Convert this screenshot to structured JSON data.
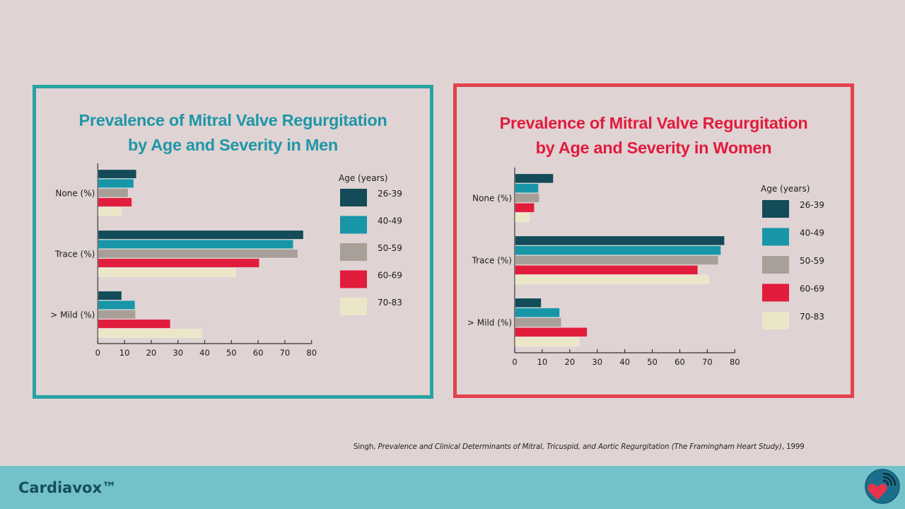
{
  "colors": {
    "background": "#e0d3d4",
    "men_frame": "#28a3a3",
    "men_title": "#1e97a6",
    "women_frame": "#e2424e",
    "women_title": "#e21b3c",
    "footer": "#73c1cb",
    "brand_text": "#164d5c"
  },
  "chart_data": [
    {
      "type": "bar",
      "orientation": "horizontal",
      "title": "Prevalence of Mitral Valve Regurgitation by Age and Severity in Men",
      "title_lines": [
        "Prevalence of Mitral Valve Regurgitation",
        "by Age and Severity in Men"
      ],
      "categories": [
        "None (%)",
        "Trace (%)",
        "> Mild (%)"
      ],
      "legend_title": "Age (years)",
      "legend_position": "right",
      "xlim": [
        0,
        80
      ],
      "xticks": [
        0,
        10,
        20,
        30,
        40,
        50,
        60,
        70,
        80
      ],
      "xlabel": "",
      "ylabel": "",
      "grid": false,
      "series": [
        {
          "name": "26-39",
          "color": "#134b58",
          "values": [
            14.4,
            76.9,
            8.9
          ]
        },
        {
          "name": "40-49",
          "color": "#1896a8",
          "values": [
            13.4,
            73.1,
            13.9
          ]
        },
        {
          "name": "50-59",
          "color": "#a89f98",
          "values": [
            11.3,
            74.8,
            14.1
          ]
        },
        {
          "name": "60-69",
          "color": "#e21c3c",
          "values": [
            12.7,
            60.4,
            27.1
          ]
        },
        {
          "name": "70-83",
          "color": "#ece6c8",
          "values": [
            8.8,
            51.7,
            39.0
          ]
        }
      ]
    },
    {
      "type": "bar",
      "orientation": "horizontal",
      "title": "Prevalence of Mitral Valve Regurgitation by Age and Severity in Women",
      "title_lines": [
        "Prevalence of Mitral Valve Regurgitation",
        "by Age and Severity in Women"
      ],
      "categories": [
        "None (%)",
        "Trace (%)",
        "> Mild (%)"
      ],
      "legend_title": "Age (years)",
      "legend_position": "right",
      "xlim": [
        0,
        80
      ],
      "xticks": [
        0,
        10,
        20,
        30,
        40,
        50,
        60,
        70,
        80
      ],
      "xlabel": "",
      "ylabel": "",
      "grid": false,
      "series": [
        {
          "name": "26-39",
          "color": "#134b58",
          "values": [
            14.0,
            76.2,
            9.6
          ]
        },
        {
          "name": "40-49",
          "color": "#1896a8",
          "values": [
            8.6,
            74.9,
            16.3
          ]
        },
        {
          "name": "50-59",
          "color": "#a89f98",
          "values": [
            8.9,
            74.0,
            16.9
          ]
        },
        {
          "name": "60-69",
          "color": "#e21c3c",
          "values": [
            7.1,
            66.5,
            26.3
          ]
        },
        {
          "name": "70-83",
          "color": "#ece6c8",
          "values": [
            5.4,
            70.6,
            23.4
          ]
        }
      ]
    }
  ],
  "citation": {
    "author": "Singh, ",
    "title": "Prevalence and Clinical Determinants of Mitral, Tricuspid, and Aortic Regurgitation (The Framingham Heart Study)",
    "year": ", 1999"
  },
  "footer": {
    "brand": "Cardiavox™",
    "logo_icon": "heart-signal-icon"
  }
}
